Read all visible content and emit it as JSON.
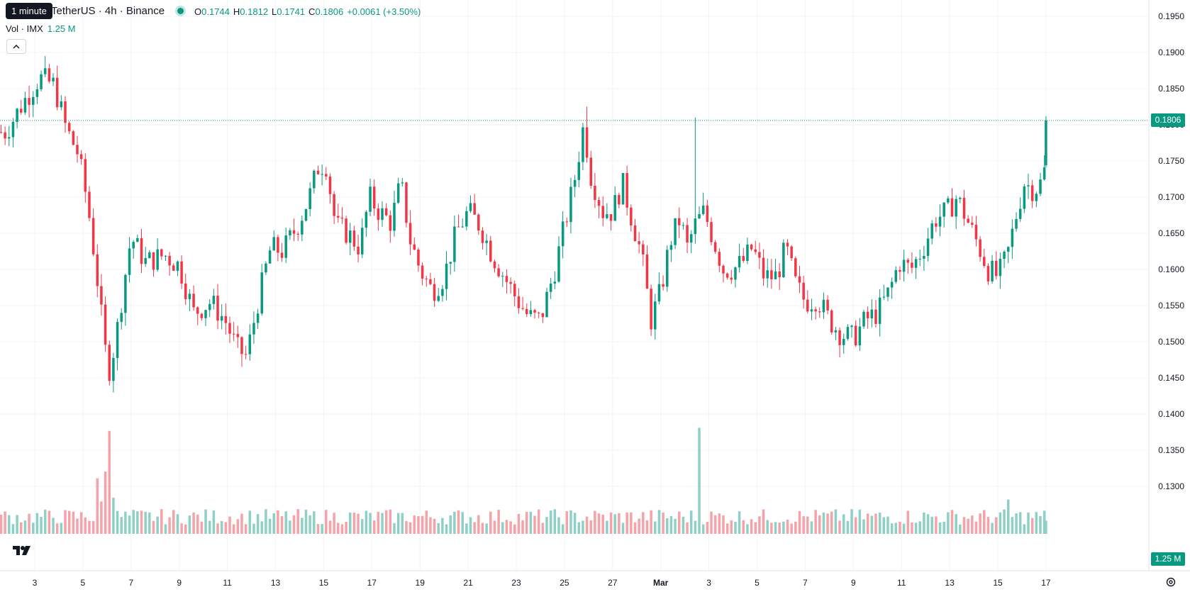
{
  "header": {
    "tooltip": "1 minute",
    "symbol": "ImmutableX / TetherUS · 4h · Binance",
    "symbol_visible": "TetherUS · 4h · Binance",
    "open_label": "O",
    "open": "0.1744",
    "high_label": "H",
    "high": "0.1812",
    "low_label": "L",
    "low": "0.1741",
    "close_label": "C",
    "close": "0.1806",
    "change": "+0.0061 (+3.50%)"
  },
  "volume_legend": {
    "label": "Vol · IMX",
    "value": "1.25 M"
  },
  "last_price_tag": "0.1806",
  "volume_tag": "1.25 M",
  "colors": {
    "up": "#089981",
    "down": "#f23645",
    "vol_up": "#8fd0c6",
    "vol_down": "#f5a3a8",
    "grid": "#f0f3fa"
  },
  "icons": {
    "collapse": "chevron-up-icon",
    "logo": "tradingview-logo-icon",
    "settings": "settings-gear-icon"
  },
  "chart_data": {
    "type": "candlestick",
    "title": "ImmutableX / TetherUS · 4h · Binance",
    "timeframe": "4h",
    "ylim": [
      0.127,
      0.197
    ],
    "price_ticks": [
      "0.1950",
      "0.1900",
      "0.1850",
      "0.1800",
      "0.1750",
      "0.1700",
      "0.1650",
      "0.1600",
      "0.1550",
      "0.1500",
      "0.1450",
      "0.1400",
      "0.1350",
      "0.1300"
    ],
    "x_ticks": [
      {
        "label": "3",
        "day": 3
      },
      {
        "label": "5",
        "day": 5
      },
      {
        "label": "7",
        "day": 7
      },
      {
        "label": "9",
        "day": 9
      },
      {
        "label": "11",
        "day": 11
      },
      {
        "label": "13",
        "day": 13
      },
      {
        "label": "15",
        "day": 15
      },
      {
        "label": "17",
        "day": 17
      },
      {
        "label": "19",
        "day": 19
      },
      {
        "label": "21",
        "day": 21
      },
      {
        "label": "23",
        "day": 23
      },
      {
        "label": "25",
        "day": 25
      },
      {
        "label": "27",
        "day": 27
      },
      {
        "label": "Mar",
        "day": 29,
        "bold": true
      },
      {
        "label": "3",
        "day": 31
      },
      {
        "label": "5",
        "day": 33
      },
      {
        "label": "7",
        "day": 35
      },
      {
        "label": "9",
        "day": 37
      },
      {
        "label": "11",
        "day": 39
      },
      {
        "label": "13",
        "day": 41
      },
      {
        "label": "15",
        "day": 43
      },
      {
        "label": "17",
        "day": 45
      }
    ],
    "anchors": [
      {
        "d": 1.8,
        "p": 0.179
      },
      {
        "d": 2.5,
        "p": 0.183
      },
      {
        "d": 3.2,
        "p": 0.1865
      },
      {
        "d": 3.8,
        "p": 0.1855
      },
      {
        "d": 4.3,
        "p": 0.1795
      },
      {
        "d": 4.8,
        "p": 0.176
      },
      {
        "d": 5.2,
        "p": 0.169
      },
      {
        "d": 5.55,
        "p": 0.16
      },
      {
        "d": 5.85,
        "p": 0.151
      },
      {
        "d": 6.05,
        "p": 0.1455
      },
      {
        "d": 6.35,
        "p": 0.15
      },
      {
        "d": 6.7,
        "p": 0.158
      },
      {
        "d": 7.0,
        "p": 0.1645
      },
      {
        "d": 7.6,
        "p": 0.161
      },
      {
        "d": 8.4,
        "p": 0.162
      },
      {
        "d": 9.0,
        "p": 0.1605
      },
      {
        "d": 9.6,
        "p": 0.154
      },
      {
        "d": 10.3,
        "p": 0.1555
      },
      {
        "d": 10.9,
        "p": 0.153
      },
      {
        "d": 11.4,
        "p": 0.149
      },
      {
        "d": 11.8,
        "p": 0.148
      },
      {
        "d": 12.3,
        "p": 0.156
      },
      {
        "d": 12.8,
        "p": 0.163
      },
      {
        "d": 13.3,
        "p": 0.1625
      },
      {
        "d": 13.9,
        "p": 0.166
      },
      {
        "d": 14.4,
        "p": 0.17
      },
      {
        "d": 14.8,
        "p": 0.1745
      },
      {
        "d": 15.1,
        "p": 0.1745
      },
      {
        "d": 15.5,
        "p": 0.166
      },
      {
        "d": 16.0,
        "p": 0.165
      },
      {
        "d": 16.5,
        "p": 0.163
      },
      {
        "d": 16.9,
        "p": 0.17
      },
      {
        "d": 17.3,
        "p": 0.168
      },
      {
        "d": 17.8,
        "p": 0.1665
      },
      {
        "d": 18.2,
        "p": 0.172
      },
      {
        "d": 18.6,
        "p": 0.164
      },
      {
        "d": 19.0,
        "p": 0.16
      },
      {
        "d": 19.5,
        "p": 0.157
      },
      {
        "d": 20.0,
        "p": 0.159
      },
      {
        "d": 20.5,
        "p": 0.165
      },
      {
        "d": 21.0,
        "p": 0.168
      },
      {
        "d": 21.5,
        "p": 0.166
      },
      {
        "d": 22.0,
        "p": 0.162
      },
      {
        "d": 22.5,
        "p": 0.159
      },
      {
        "d": 23.0,
        "p": 0.156
      },
      {
        "d": 23.5,
        "p": 0.1535
      },
      {
        "d": 24.0,
        "p": 0.153
      },
      {
        "d": 24.6,
        "p": 0.16
      },
      {
        "d": 25.0,
        "p": 0.166
      },
      {
        "d": 25.4,
        "p": 0.172
      },
      {
        "d": 25.8,
        "p": 0.18
      },
      {
        "d": 26.1,
        "p": 0.173
      },
      {
        "d": 26.6,
        "p": 0.168
      },
      {
        "d": 27.0,
        "p": 0.168
      },
      {
        "d": 27.4,
        "p": 0.172
      },
      {
        "d": 27.8,
        "p": 0.167
      },
      {
        "d": 28.2,
        "p": 0.162
      },
      {
        "d": 28.6,
        "p": 0.153
      },
      {
        "d": 29.0,
        "p": 0.157
      },
      {
        "d": 29.4,
        "p": 0.164
      },
      {
        "d": 29.8,
        "p": 0.167
      },
      {
        "d": 30.1,
        "p": 0.163
      },
      {
        "d": 30.4,
        "p": 0.166
      },
      {
        "d": 30.8,
        "p": 0.168
      },
      {
        "d": 31.2,
        "p": 0.164
      },
      {
        "d": 31.6,
        "p": 0.16
      },
      {
        "d": 32.0,
        "p": 0.16
      },
      {
        "d": 32.4,
        "p": 0.161
      },
      {
        "d": 32.8,
        "p": 0.163
      },
      {
        "d": 33.3,
        "p": 0.159
      },
      {
        "d": 33.8,
        "p": 0.159
      },
      {
        "d": 34.2,
        "p": 0.163
      },
      {
        "d": 34.6,
        "p": 0.158
      },
      {
        "d": 35.0,
        "p": 0.1555
      },
      {
        "d": 35.5,
        "p": 0.156
      },
      {
        "d": 36.0,
        "p": 0.153
      },
      {
        "d": 36.5,
        "p": 0.151
      },
      {
        "d": 37.0,
        "p": 0.1505
      },
      {
        "d": 37.5,
        "p": 0.153
      },
      {
        "d": 38.0,
        "p": 0.154
      },
      {
        "d": 38.5,
        "p": 0.157
      },
      {
        "d": 38.9,
        "p": 0.161
      },
      {
        "d": 39.4,
        "p": 0.16
      },
      {
        "d": 39.9,
        "p": 0.163
      },
      {
        "d": 40.4,
        "p": 0.167
      },
      {
        "d": 40.9,
        "p": 0.168
      },
      {
        "d": 41.3,
        "p": 0.17
      },
      {
        "d": 41.7,
        "p": 0.167
      },
      {
        "d": 42.1,
        "p": 0.164
      },
      {
        "d": 42.6,
        "p": 0.16
      },
      {
        "d": 43.0,
        "p": 0.159
      },
      {
        "d": 43.4,
        "p": 0.162
      },
      {
        "d": 43.8,
        "p": 0.168
      },
      {
        "d": 44.1,
        "p": 0.172
      },
      {
        "d": 44.5,
        "p": 0.171
      },
      {
        "d": 44.8,
        "p": 0.172
      },
      {
        "d": 45.0,
        "p": 0.1744
      }
    ],
    "last_candle": {
      "open": 0.1744,
      "high": 0.1812,
      "low": 0.1741,
      "close": 0.1806
    },
    "spikes": [
      {
        "d": 26.0,
        "high": 0.1825
      },
      {
        "d": 30.5,
        "high": 0.181
      },
      {
        "d": 3.5,
        "high": 0.1895
      },
      {
        "d": 6.2,
        "low": 0.143
      }
    ],
    "volume": {
      "axis_label": "1.25 M",
      "peaks": [
        {
          "d": 6.1,
          "rel": 0.66
        },
        {
          "d": 30.6,
          "rel": 0.68
        },
        {
          "d": 5.9,
          "rel": 0.4
        },
        {
          "d": 43.5,
          "rel": 0.22
        }
      ]
    },
    "last_price": 0.1806
  }
}
